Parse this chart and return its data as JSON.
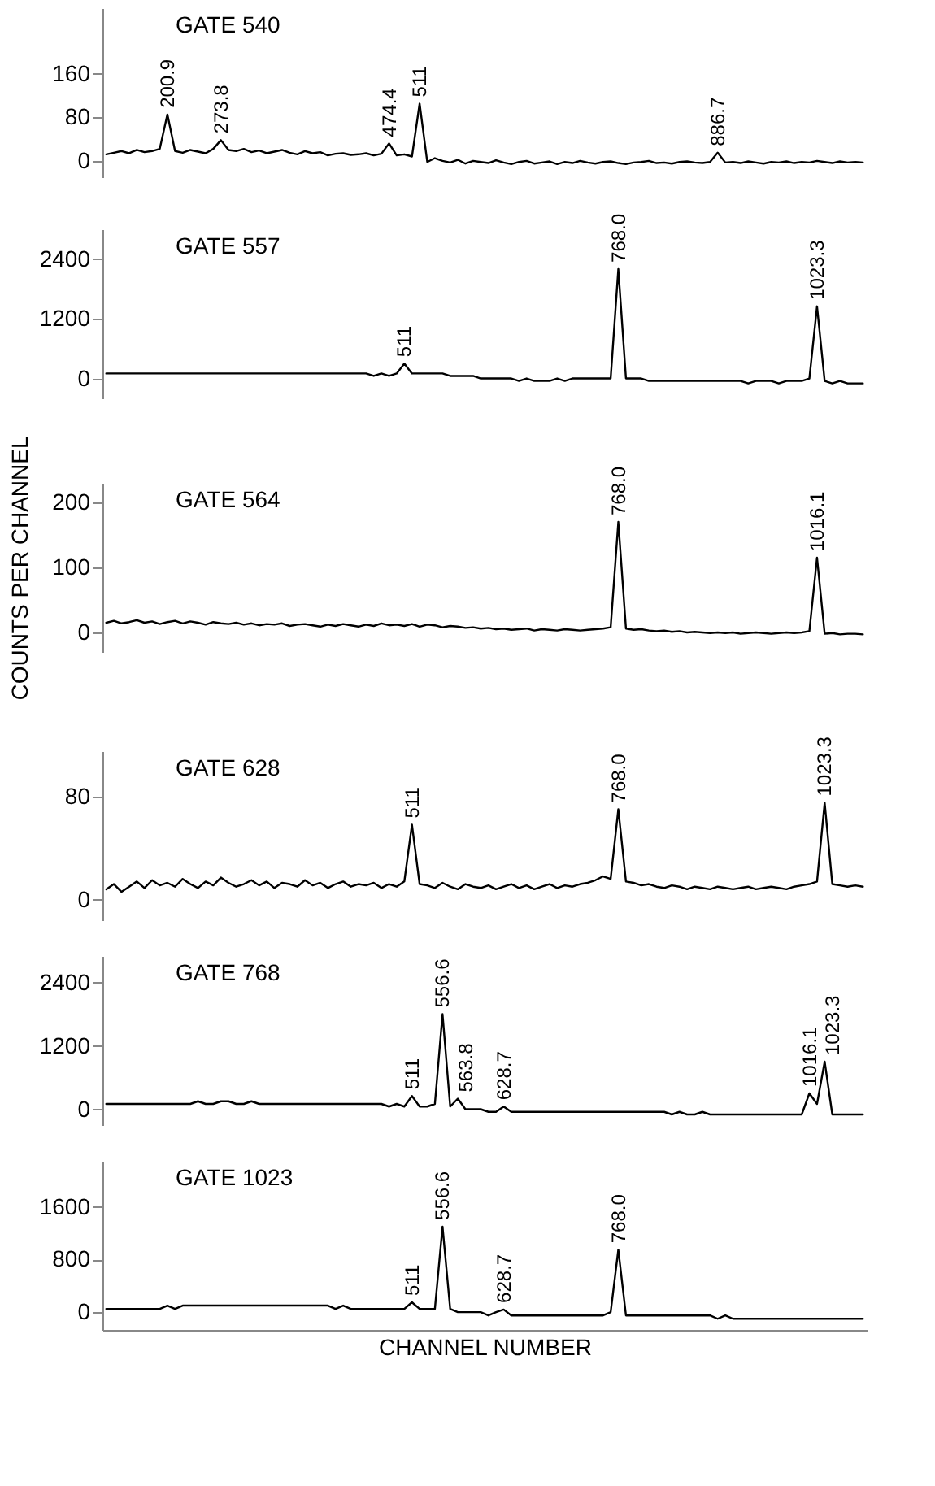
{
  "chart_data": [
    {
      "type": "line",
      "title": "GATE 540",
      "tick_labels": "y",
      "ylim": [
        -30,
        280
      ],
      "yticks": [
        0,
        80,
        160
      ],
      "categories": [
        null,
        null,
        null,
        null,
        null,
        null,
        null,
        null,
        null,
        null,
        null,
        null,
        null,
        null,
        null,
        null,
        null,
        null,
        null,
        null,
        null,
        null,
        null,
        null,
        null,
        null,
        null,
        null,
        null,
        null,
        null,
        null,
        null,
        null,
        null,
        null,
        null,
        null,
        null,
        null,
        null,
        null,
        null,
        null,
        null,
        null,
        null,
        null,
        null,
        null,
        null,
        null,
        null,
        null,
        null,
        null,
        null,
        null,
        null,
        null,
        null,
        null,
        null,
        null,
        null,
        null,
        null,
        null,
        null,
        null,
        null,
        null,
        null,
        null,
        null,
        null,
        null,
        null,
        null,
        null,
        null,
        null,
        null,
        null,
        null,
        null,
        null,
        null,
        null,
        null,
        null,
        null,
        null,
        null,
        null,
        null,
        null,
        null,
        null,
        null
      ],
      "series": [
        {
          "color": "#000000",
          "values": [
            12,
            15,
            18,
            14,
            20,
            16,
            18,
            22,
            85,
            18,
            15,
            20,
            17,
            14,
            22,
            38,
            20,
            18,
            22,
            16,
            19,
            14,
            17,
            20,
            15,
            12,
            18,
            14,
            16,
            10,
            13,
            14,
            11,
            12,
            14,
            10,
            13,
            32,
            10,
            12,
            8,
            105,
            -2,
            5,
            0,
            -3,
            2,
            -5,
            0,
            -2,
            -4,
            1,
            -3,
            -6,
            -2,
            0,
            -5,
            -3,
            -1,
            -6,
            -2,
            -4,
            0,
            -3,
            -5,
            -2,
            -1,
            -4,
            -6,
            -3,
            -2,
            0,
            -4,
            -3,
            -5,
            -2,
            -1,
            -3,
            -4,
            -2,
            15,
            -3,
            -2,
            -4,
            -1,
            -3,
            -5,
            -2,
            -3,
            -1,
            -4,
            -2,
            -3,
            0,
            -2,
            -4,
            -1,
            -3,
            -2,
            -3
          ]
        }
      ],
      "annotations": [
        {
          "text": "200.9",
          "y": 85
        },
        {
          "text": "273.8",
          "y": 38
        },
        {
          "text": "474.4",
          "y": 32
        },
        {
          "text": "511",
          "y": 105
        },
        {
          "text": "886.7",
          "y": 15
        }
      ]
    },
    {
      "type": "line",
      "title": "GATE 557",
      "tick_labels": "y",
      "ylim": [
        -400,
        3000
      ],
      "yticks": [
        0,
        1200,
        2400
      ],
      "categories": [
        null,
        null,
        null,
        null,
        null,
        null,
        null,
        null,
        null,
        null,
        null,
        null,
        null,
        null,
        null,
        null,
        null,
        null,
        null,
        null,
        null,
        null,
        null,
        null,
        null,
        null,
        null,
        null,
        null,
        null,
        null,
        null,
        null,
        null,
        null,
        null,
        null,
        null,
        null,
        null,
        null,
        null,
        null,
        null,
        null,
        null,
        null,
        null,
        null,
        null,
        null,
        null,
        null,
        null,
        null,
        null,
        null,
        null,
        null,
        null,
        null,
        null,
        null,
        null,
        null,
        null,
        null,
        null,
        null,
        null,
        null,
        null,
        null,
        null,
        null,
        null,
        null,
        null,
        null,
        null,
        null,
        null,
        null,
        null,
        null,
        null,
        null,
        null,
        null,
        null,
        null,
        null,
        null,
        null,
        null,
        null,
        null,
        null,
        null,
        null
      ],
      "series": [
        {
          "color": "#000000",
          "values": [
            100,
            100,
            100,
            100,
            100,
            100,
            100,
            100,
            100,
            100,
            100,
            100,
            100,
            100,
            100,
            100,
            100,
            100,
            100,
            100,
            100,
            100,
            100,
            100,
            100,
            100,
            100,
            100,
            100,
            100,
            100,
            100,
            100,
            100,
            100,
            50,
            100,
            50,
            100,
            300,
            100,
            100,
            100,
            100,
            100,
            50,
            50,
            50,
            50,
            0,
            0,
            0,
            0,
            0,
            -50,
            0,
            -50,
            -50,
            -50,
            0,
            -50,
            0,
            0,
            0,
            0,
            0,
            0,
            2200,
            0,
            0,
            0,
            -50,
            -50,
            -50,
            -50,
            -50,
            -50,
            -50,
            -50,
            -50,
            -50,
            -50,
            -50,
            -50,
            -100,
            -50,
            -50,
            -50,
            -100,
            -50,
            -50,
            -50,
            0,
            1450,
            -50,
            -100,
            -50,
            -100,
            -100,
            -100
          ]
        }
      ],
      "annotations": [
        {
          "text": "511",
          "y": 300
        },
        {
          "text": "768.0",
          "y": 2200
        },
        {
          "text": "1023.3",
          "y": 1450
        }
      ]
    },
    {
      "type": "line",
      "title": "GATE 564",
      "tick_labels": "y",
      "ylabel": "COUNTS PER CHANNEL",
      "ylim": [
        -30,
        230
      ],
      "yticks": [
        0,
        100,
        200
      ],
      "categories": [
        null,
        null,
        null,
        null,
        null,
        null,
        null,
        null,
        null,
        null,
        null,
        null,
        null,
        null,
        null,
        null,
        null,
        null,
        null,
        null,
        null,
        null,
        null,
        null,
        null,
        null,
        null,
        null,
        null,
        null,
        null,
        null,
        null,
        null,
        null,
        null,
        null,
        null,
        null,
        null,
        null,
        null,
        null,
        null,
        null,
        null,
        null,
        null,
        null,
        null,
        null,
        null,
        null,
        null,
        null,
        null,
        null,
        null,
        null,
        null,
        null,
        null,
        null,
        null,
        null,
        null,
        null,
        null,
        null,
        null,
        null,
        null,
        null,
        null,
        null,
        null,
        null,
        null,
        null,
        null,
        null,
        null,
        null,
        null,
        null,
        null,
        null,
        null,
        null,
        null,
        null,
        null,
        null,
        null,
        null,
        null,
        null,
        null,
        null,
        null
      ],
      "series": [
        {
          "color": "#000000",
          "values": [
            15,
            18,
            14,
            16,
            19,
            15,
            17,
            13,
            16,
            18,
            14,
            17,
            15,
            12,
            16,
            14,
            13,
            15,
            12,
            14,
            11,
            13,
            12,
            14,
            10,
            12,
            13,
            11,
            9,
            12,
            10,
            13,
            11,
            9,
            12,
            10,
            14,
            11,
            12,
            10,
            13,
            9,
            12,
            11,
            8,
            10,
            9,
            7,
            8,
            6,
            7,
            5,
            6,
            4,
            5,
            6,
            3,
            5,
            4,
            3,
            5,
            4,
            3,
            4,
            5,
            6,
            8,
            170,
            6,
            4,
            5,
            3,
            2,
            3,
            1,
            2,
            0,
            1,
            0,
            -1,
            0,
            -1,
            0,
            -2,
            -1,
            0,
            -1,
            -2,
            -1,
            0,
            -1,
            0,
            2,
            115,
            -2,
            -1,
            -3,
            -2,
            -2,
            -3
          ]
        }
      ],
      "annotations": [
        {
          "text": "768.0",
          "y": 170
        },
        {
          "text": "1016.1",
          "y": 115
        }
      ]
    },
    {
      "type": "line",
      "title": "GATE 628",
      "tick_labels": "y",
      "ylim": [
        -16,
        115
      ],
      "yticks": [
        0,
        80
      ],
      "categories": [
        null,
        null,
        null,
        null,
        null,
        null,
        null,
        null,
        null,
        null,
        null,
        null,
        null,
        null,
        null,
        null,
        null,
        null,
        null,
        null,
        null,
        null,
        null,
        null,
        null,
        null,
        null,
        null,
        null,
        null,
        null,
        null,
        null,
        null,
        null,
        null,
        null,
        null,
        null,
        null,
        null,
        null,
        null,
        null,
        null,
        null,
        null,
        null,
        null,
        null,
        null,
        null,
        null,
        null,
        null,
        null,
        null,
        null,
        null,
        null,
        null,
        null,
        null,
        null,
        null,
        null,
        null,
        null,
        null,
        null,
        null,
        null,
        null,
        null,
        null,
        null,
        null,
        null,
        null,
        null,
        null,
        null,
        null,
        null,
        null,
        null,
        null,
        null,
        null,
        null,
        null,
        null,
        null,
        null,
        null,
        null,
        null,
        null,
        null,
        null
      ],
      "series": [
        {
          "color": "#000000",
          "values": [
            8,
            12,
            6,
            10,
            14,
            9,
            15,
            11,
            13,
            10,
            16,
            12,
            9,
            14,
            11,
            17,
            13,
            10,
            12,
            15,
            11,
            14,
            9,
            13,
            12,
            10,
            15,
            11,
            13,
            9,
            12,
            14,
            10,
            12,
            11,
            13,
            9,
            12,
            10,
            14,
            58,
            12,
            11,
            9,
            13,
            10,
            8,
            12,
            10,
            9,
            11,
            8,
            10,
            12,
            9,
            11,
            8,
            10,
            12,
            9,
            11,
            10,
            12,
            13,
            15,
            18,
            16,
            70,
            14,
            13,
            11,
            12,
            10,
            9,
            11,
            10,
            8,
            10,
            9,
            8,
            10,
            9,
            8,
            9,
            10,
            8,
            9,
            10,
            9,
            8,
            10,
            11,
            12,
            14,
            75,
            12,
            11,
            10,
            11,
            10
          ]
        }
      ],
      "annotations": [
        {
          "text": "511",
          "y": 58
        },
        {
          "text": "768.0",
          "y": 70
        },
        {
          "text": "1023.3",
          "y": 75
        }
      ]
    },
    {
      "type": "line",
      "title": "GATE 768",
      "tick_labels": "y",
      "ylim": [
        -300,
        2900
      ],
      "yticks": [
        0,
        1200,
        2400
      ],
      "categories": [
        null,
        null,
        null,
        null,
        null,
        null,
        null,
        null,
        null,
        null,
        null,
        null,
        null,
        null,
        null,
        null,
        null,
        null,
        null,
        null,
        null,
        null,
        null,
        null,
        null,
        null,
        null,
        null,
        null,
        null,
        null,
        null,
        null,
        null,
        null,
        null,
        null,
        null,
        null,
        null,
        null,
        null,
        null,
        null,
        null,
        null,
        null,
        null,
        null,
        null,
        null,
        null,
        null,
        null,
        null,
        null,
        null,
        null,
        null,
        null,
        null,
        null,
        null,
        null,
        null,
        null,
        null,
        null,
        null,
        null,
        null,
        null,
        null,
        null,
        null,
        null,
        null,
        null,
        null,
        null,
        null,
        null,
        null,
        null,
        null,
        null,
        null,
        null,
        null,
        null,
        null,
        null,
        null,
        null,
        null,
        null,
        null,
        null,
        null,
        null
      ],
      "series": [
        {
          "color": "#000000",
          "values": [
            100,
            100,
            100,
            100,
            100,
            100,
            100,
            100,
            100,
            100,
            100,
            100,
            150,
            100,
            100,
            150,
            150,
            100,
            100,
            150,
            100,
            100,
            100,
            100,
            100,
            100,
            100,
            100,
            100,
            100,
            100,
            100,
            100,
            100,
            100,
            100,
            100,
            50,
            100,
            50,
            250,
            50,
            50,
            100,
            1800,
            50,
            200,
            0,
            0,
            0,
            -50,
            -50,
            50,
            -50,
            -50,
            -50,
            -50,
            -50,
            -50,
            -50,
            -50,
            -50,
            -50,
            -50,
            -50,
            -50,
            -50,
            -50,
            -50,
            -50,
            -50,
            -50,
            -50,
            -50,
            -100,
            -50,
            -100,
            -100,
            -50,
            -100,
            -100,
            -100,
            -100,
            -100,
            -100,
            -100,
            -100,
            -100,
            -100,
            -100,
            -100,
            -100,
            300,
            100,
            900,
            -100,
            -100,
            -100,
            -100,
            -100
          ]
        }
      ],
      "annotations": [
        {
          "text": "511",
          "y": 250
        },
        {
          "text": "556.6",
          "y": 1800
        },
        {
          "text": "563.8",
          "y": 200
        },
        {
          "text": "628.7",
          "y": 50
        },
        {
          "text": "1016.1",
          "y": 300
        },
        {
          "text": "1023.3",
          "y": 900
        }
      ]
    },
    {
      "type": "line",
      "title": "GATE 1023",
      "tick_labels": "y",
      "xlabel": "CHANNEL NUMBER",
      "ylim": [
        -270,
        2300
      ],
      "yticks": [
        0,
        800,
        1600
      ],
      "categories": [
        null,
        null,
        null,
        null,
        null,
        null,
        null,
        null,
        null,
        null,
        null,
        null,
        null,
        null,
        null,
        null,
        null,
        null,
        null,
        null,
        null,
        null,
        null,
        null,
        null,
        null,
        null,
        null,
        null,
        null,
        null,
        null,
        null,
        null,
        null,
        null,
        null,
        null,
        null,
        null,
        null,
        null,
        null,
        null,
        null,
        null,
        null,
        null,
        null,
        null,
        null,
        null,
        null,
        null,
        null,
        null,
        null,
        null,
        null,
        null,
        null,
        null,
        null,
        null,
        null,
        null,
        null,
        null,
        null,
        null,
        null,
        null,
        null,
        null,
        null,
        null,
        null,
        null,
        null,
        null,
        null,
        null,
        null,
        null,
        null,
        null,
        null,
        null,
        null,
        null,
        null,
        null,
        null,
        null,
        null,
        null,
        null,
        null,
        null,
        null
      ],
      "series": [
        {
          "color": "#000000",
          "values": [
            50,
            50,
            50,
            50,
            50,
            50,
            50,
            50,
            100,
            50,
            100,
            100,
            100,
            100,
            100,
            100,
            100,
            100,
            100,
            100,
            100,
            100,
            100,
            100,
            100,
            100,
            100,
            100,
            100,
            100,
            50,
            100,
            50,
            50,
            50,
            50,
            50,
            50,
            50,
            50,
            150,
            50,
            50,
            50,
            1300,
            50,
            0,
            0,
            0,
            0,
            -50,
            0,
            40,
            -50,
            -50,
            -50,
            -50,
            -50,
            -50,
            -50,
            -50,
            -50,
            -50,
            -50,
            -50,
            -50,
            0,
            950,
            -50,
            -50,
            -50,
            -50,
            -50,
            -50,
            -50,
            -50,
            -50,
            -50,
            -50,
            -50,
            -100,
            -50,
            -100,
            -100,
            -100,
            -100,
            -100,
            -100,
            -100,
            -100,
            -100,
            -100,
            -100,
            -100,
            -100,
            -100,
            -100,
            -100,
            -100,
            -100
          ]
        }
      ],
      "annotations": [
        {
          "text": "511",
          "y": 150
        },
        {
          "text": "556.6",
          "y": 1300
        },
        {
          "text": "628.7",
          "y": 40
        },
        {
          "text": "768.0",
          "y": 950
        }
      ]
    }
  ]
}
